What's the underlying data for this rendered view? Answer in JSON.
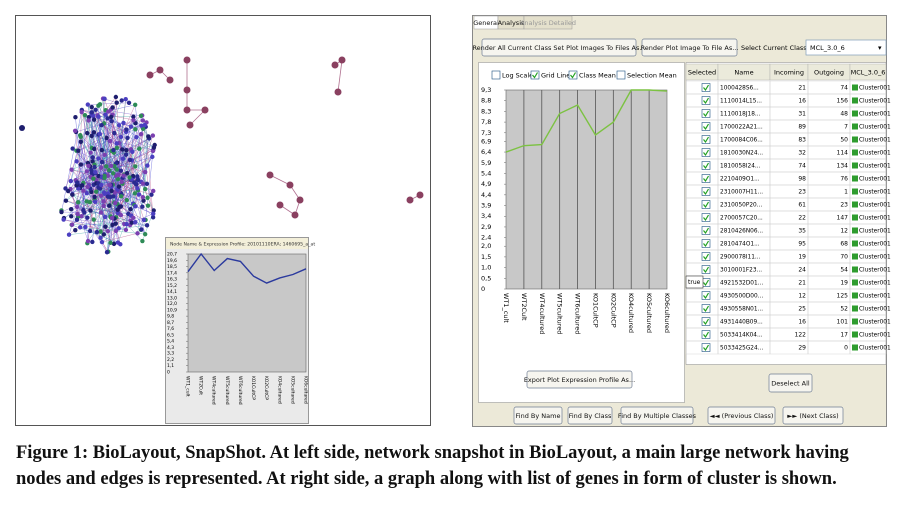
{
  "left_panel": {
    "inset_chart": {
      "type": "line",
      "title": "Node Name & Expression Profile: 20101110ERA; 1460695_a_at",
      "color": "#2b3a9e",
      "categories": [
        "WT1_cult",
        "WT2Cult",
        "WT4cultured",
        "WT5cultured",
        "WT6cultured",
        "KO1CultCP",
        "KO2CultCP",
        "KO4cultured",
        "KO5cultured",
        "KO6cultured"
      ],
      "values": [
        17.6,
        20.7,
        17.8,
        19.9,
        19.4,
        16.8,
        15.6,
        16.5,
        17.1,
        18.1
      ],
      "ylim": [
        0,
        20.7
      ],
      "yticks": [
        {
          "value": 20.7,
          "label": "20,7"
        },
        {
          "value": 19.6,
          "label": "19,6"
        },
        {
          "value": 18.5,
          "label": "18,5"
        },
        {
          "value": 17.4,
          "label": "17,4"
        },
        {
          "value": 16.3,
          "label": "16,3"
        },
        {
          "value": 15.2,
          "label": "15,2"
        },
        {
          "value": 14.1,
          "label": "14,1"
        },
        {
          "value": 13.0,
          "label": "13,0"
        },
        {
          "value": 12.0,
          "label": "12,0"
        },
        {
          "value": 10.9,
          "label": "10,9"
        },
        {
          "value": 9.8,
          "label": "9,8"
        },
        {
          "value": 8.7,
          "label": "8,7"
        },
        {
          "value": 7.6,
          "label": "7,6"
        },
        {
          "value": 6.5,
          "label": "6,5"
        },
        {
          "value": 5.4,
          "label": "5,4"
        },
        {
          "value": 4.3,
          "label": "4,3"
        },
        {
          "value": 3.3,
          "label": "3,3"
        },
        {
          "value": 2.2,
          "label": "2,2"
        },
        {
          "value": 1.1,
          "label": "1,1"
        },
        0
      ]
    }
  },
  "right_panel": {
    "tabs": [
      "General",
      "Analysis",
      "Analysis Detailed"
    ],
    "buttons": {
      "render_all": "Render All Current Class Set Plot Images To Files As...",
      "render_plot": "Render Plot Image To File As...",
      "export": "Export Plot Expression Profile As...",
      "deselect": "Deselect All",
      "find_name": "Find By Name",
      "find_class": "Find By Class",
      "find_multiple": "Find By Multiple Classes",
      "previous": "◄◄ (Previous Class)",
      "next": "►► (Next Class)"
    },
    "class_set_label": "Select Current Class Set:",
    "class_set_value": "MCL_3.0_6",
    "checkboxes": [
      "Log Scale",
      "Grid Lines",
      "Class Mean",
      "Selection Mean"
    ],
    "chart": {
      "type": "line",
      "color": "#7cc242",
      "categories": [
        "WT1_cult",
        "WT2Cult",
        "WT4cultured",
        "WT5cultured",
        "WT6cultured",
        "KO1CultCP",
        "KO2CultCP",
        "KO4cultured",
        "KO5cultured",
        "KO6cultured"
      ],
      "values": [
        6.4,
        6.7,
        6.75,
        8.2,
        8.6,
        7.2,
        7.8,
        9.3,
        9.3,
        9.25
      ],
      "ylim": [
        0,
        9.3
      ],
      "yticks": [
        {
          "value": 9.3,
          "label": "9,3"
        },
        {
          "value": 8.8,
          "label": "8,8"
        },
        {
          "value": 8.3,
          "label": "8,3"
        },
        {
          "value": 7.8,
          "label": "7,8"
        },
        {
          "value": 7.3,
          "label": "7,3"
        },
        {
          "value": 6.9,
          "label": "6,9"
        },
        {
          "value": 6.4,
          "label": "6,4"
        },
        {
          "value": 5.9,
          "label": "5,9"
        },
        {
          "value": 5.4,
          "label": "5,4"
        },
        {
          "value": 4.9,
          "label": "4,9"
        },
        {
          "value": 4.4,
          "label": "4,4"
        },
        {
          "value": 3.9,
          "label": "3,9"
        },
        {
          "value": 3.4,
          "label": "3,4"
        },
        {
          "value": 2.9,
          "label": "2,9"
        },
        {
          "value": 2.4,
          "label": "2,4"
        },
        {
          "value": 2.0,
          "label": "2,0"
        },
        {
          "value": 1.5,
          "label": "1,5"
        },
        {
          "value": 1.0,
          "label": "1,0"
        },
        {
          "value": 0.5,
          "label": "0,5"
        },
        0
      ],
      "grid": true
    },
    "table": {
      "columns": [
        "Selected",
        "Name",
        "Incoming",
        "Outgoing",
        "MCL_3.0_6"
      ],
      "editor_text": "true",
      "rows": [
        [
          "1000428S6...",
          21,
          74,
          "Cluster001"
        ],
        [
          "1110014L15...",
          16,
          156,
          "Cluster001"
        ],
        [
          "1110018J18...",
          31,
          48,
          "Cluster001"
        ],
        [
          "1700022A21...",
          89,
          7,
          "Cluster001"
        ],
        [
          "1700084C06...",
          83,
          50,
          "Cluster001"
        ],
        [
          "1810030N24...",
          32,
          114,
          "Cluster001"
        ],
        [
          "1810058I24...",
          74,
          134,
          "Cluster001"
        ],
        [
          "2210409O1...",
          98,
          76,
          "Cluster001"
        ],
        [
          "2310007H11...",
          23,
          1,
          "Cluster001"
        ],
        [
          "2310050P20...",
          61,
          23,
          "Cluster001"
        ],
        [
          "2700057C20...",
          22,
          147,
          "Cluster001"
        ],
        [
          "2810426N06...",
          35,
          12,
          "Cluster001"
        ],
        [
          "2810474O1...",
          95,
          68,
          "Cluster001"
        ],
        [
          "2900078I11...",
          19,
          70,
          "Cluster001"
        ],
        [
          "3010001F23...",
          24,
          54,
          "Cluster001"
        ],
        [
          "4921532D01...",
          21,
          19,
          "Cluster001"
        ],
        [
          "4930500D00...",
          12,
          125,
          "Cluster001"
        ],
        [
          "4930558N01...",
          25,
          52,
          "Cluster001"
        ],
        [
          "4931440B09...",
          16,
          101,
          "Cluster001"
        ],
        [
          "5033414K04...",
          122,
          17,
          "Cluster001"
        ],
        [
          "5033425G24...",
          29,
          0,
          "Cluster001"
        ]
      ]
    }
  },
  "caption": "Figure 1: BioLayout, SnapShot. At left side, network snapshot in BioLayout, a main large network having nodes and edges is represented. At right side, a graph along with list of genes in form of cluster is shown."
}
